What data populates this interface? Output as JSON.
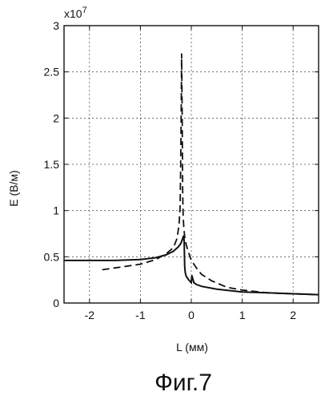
{
  "chart_data": {
    "type": "line",
    "title": "",
    "xlabel": "L (мм)",
    "ylabel": "E (В/м)",
    "y_multiplier": "x10",
    "y_multiplier_exp": "7",
    "xlim": [
      -2.5,
      2.5
    ],
    "ylim": [
      0,
      3
    ],
    "x_ticks": [
      -2,
      -1,
      0,
      1,
      2
    ],
    "y_ticks": [
      0,
      0.5,
      1,
      1.5,
      2,
      2.5,
      3
    ],
    "x_tick_labels": [
      "-2",
      "-1",
      "0",
      "1",
      "2"
    ],
    "y_tick_labels": [
      "0",
      "0.5",
      "1",
      "1.5",
      "2",
      "2.5",
      "3"
    ],
    "grid": true,
    "series": [
      {
        "style": "solid",
        "x": [
          -2.5,
          -2.0,
          -1.5,
          -1.0,
          -0.7,
          -0.5,
          -0.35,
          -0.25,
          -0.2,
          -0.17,
          -0.15,
          -0.14,
          -0.13,
          -0.12,
          -0.1,
          -0.05,
          0.0,
          0.01,
          0.05,
          0.1,
          0.2,
          0.5,
          1.0,
          1.5,
          2.0,
          2.5
        ],
        "y": [
          0.46,
          0.46,
          0.46,
          0.47,
          0.49,
          0.52,
          0.56,
          0.61,
          0.65,
          0.7,
          0.73,
          0.66,
          0.4,
          0.33,
          0.29,
          0.25,
          0.22,
          0.3,
          0.22,
          0.2,
          0.18,
          0.15,
          0.12,
          0.11,
          0.1,
          0.09
        ]
      },
      {
        "style": "dashed",
        "x": [
          -1.75,
          -1.5,
          -1.0,
          -0.7,
          -0.5,
          -0.35,
          -0.28,
          -0.24,
          -0.22,
          -0.21,
          -0.2,
          -0.19,
          -0.18,
          -0.17,
          -0.16,
          -0.15,
          -0.13,
          -0.1,
          -0.05,
          0.0,
          0.1,
          0.2,
          0.4,
          0.7,
          1.0,
          1.5,
          2.0,
          2.5
        ],
        "y": [
          0.36,
          0.38,
          0.42,
          0.47,
          0.53,
          0.6,
          0.7,
          0.85,
          1.05,
          1.4,
          2.0,
          2.7,
          2.0,
          1.2,
          0.95,
          0.83,
          0.72,
          0.63,
          0.54,
          0.46,
          0.38,
          0.31,
          0.24,
          0.17,
          0.14,
          0.11,
          0.1,
          0.09
        ]
      }
    ]
  },
  "caption": "Фиг.7"
}
